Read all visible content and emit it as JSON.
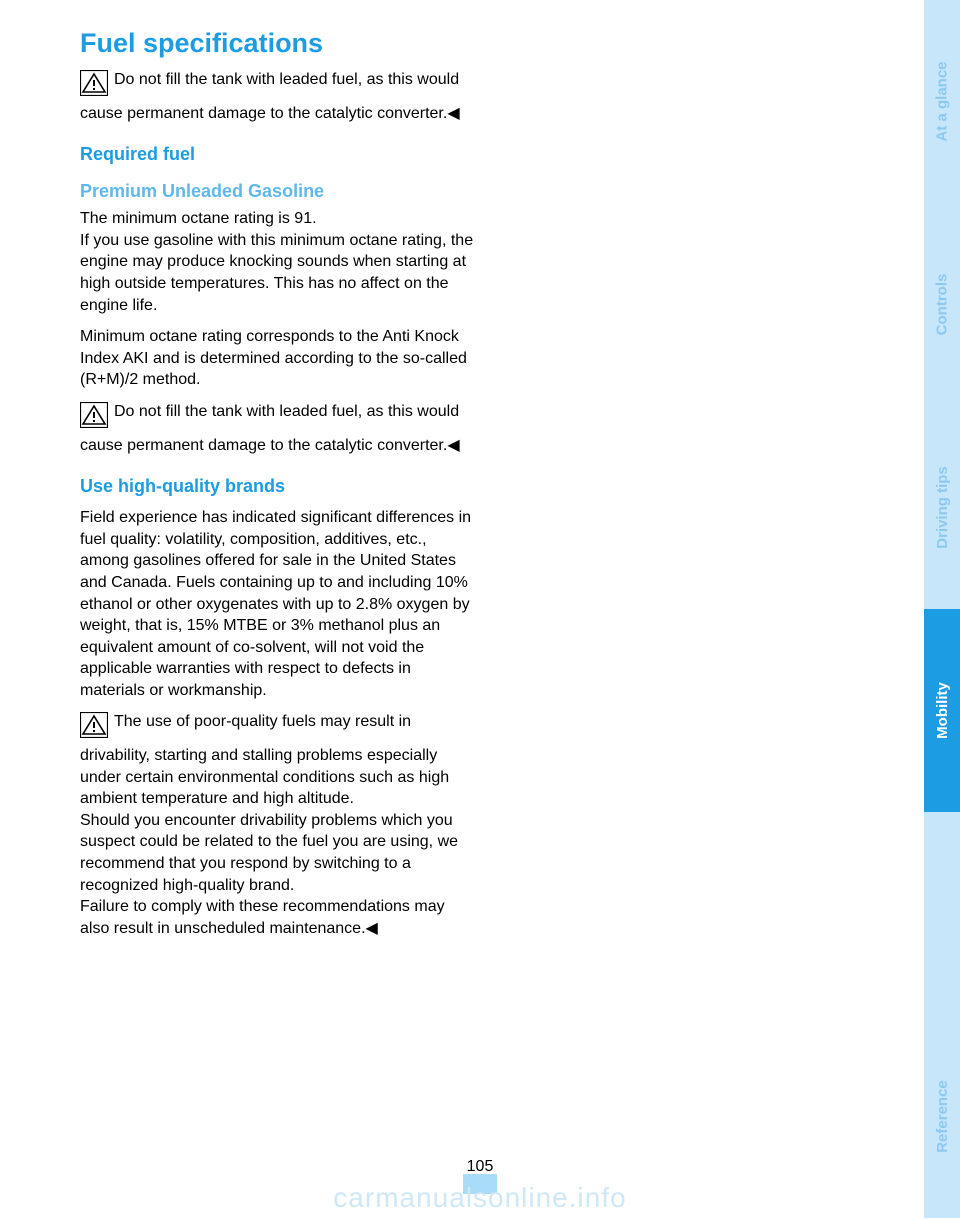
{
  "colors": {
    "accent_blue": "#1b9ce3",
    "light_blue": "#60b8ea",
    "tab_inactive_bg": "#c7e6fa",
    "tab_inactive_text": "#8cc9ef",
    "tab_active_bg": "#1b9ce3",
    "tab_active_text": "#ffffff",
    "body_text": "#000000",
    "watermark": "#cfe8f7",
    "page_bar": "#a9dcf7"
  },
  "main_title": "Fuel specifications",
  "warning1": "Do not fill the tank with leaded fuel, as this would cause permanent damage to the catalytic converter.",
  "section_required": "Required fuel",
  "sub_premium": "Premium Unleaded Gasoline",
  "para1": "The minimum octane rating is 91.\nIf you use gasoline with this minimum octane rating, the engine may produce knocking sounds when starting at high outside temperatures. This has no affect on the engine life.",
  "para2": "Minimum octane rating corresponds to the Anti Knock Index AKI and is determined according to the so-called (R+M)/2 method.",
  "warning2": "Do not fill the tank with leaded fuel, as this would cause permanent damage to the catalytic converter.",
  "section_brands": "Use high-quality brands",
  "para3": "Field experience has indicated significant differences in fuel quality: volatility, composition, additives, etc., among gasolines offered for sale in the United States and Canada. Fuels containing up to and including 10% ethanol or other oxygenates with up to 2.8% oxygen by weight, that is, 15% MTBE or 3% methanol plus an equivalent amount of co-solvent, will not void the applicable warranties with respect to defects in materials or workmanship.",
  "warning3": "The use of poor-quality fuels may result in drivability, starting and stalling problems especially under certain environmental conditions such as high ambient temperature and high altitude.\nShould you encounter drivability problems which you suspect could be related to the fuel you are using, we recommend that you respond by switching to a recognized high-quality brand.\nFailure to comply with these recommendations may also result in unscheduled maintenance.",
  "page_number": "105",
  "watermark": "carmanualsonline.info",
  "tabs": [
    {
      "label": "At a glance",
      "active": false
    },
    {
      "label": "Controls",
      "active": false
    },
    {
      "label": "Driving tips",
      "active": false
    },
    {
      "label": "Mobility",
      "active": true
    },
    {
      "label": "",
      "active": false
    },
    {
      "label": "Reference",
      "active": false,
      "partial": true
    }
  ],
  "end_mark": "◀"
}
